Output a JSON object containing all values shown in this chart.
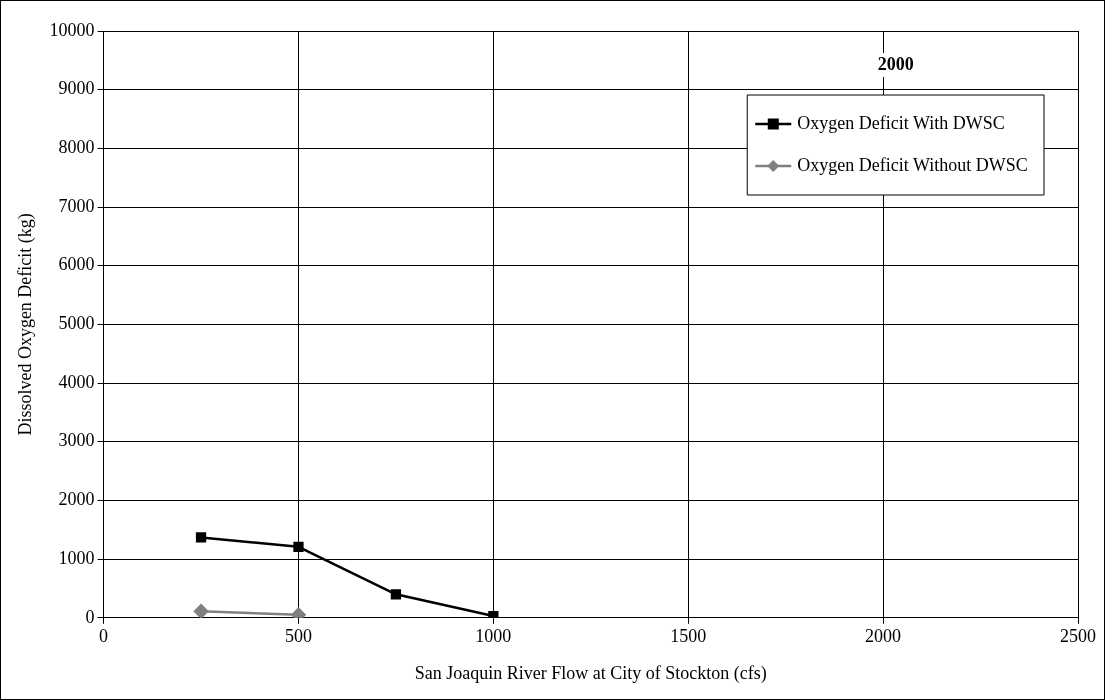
{
  "chart_data": {
    "type": "line",
    "xlabel": "San Joaquin River Flow at City of Stockton (cfs)",
    "ylabel": "Dissolved Oxygen Deficit (kg)",
    "legend_title": "2000",
    "xlim": [
      0,
      2500
    ],
    "xticks": [
      0,
      500,
      1000,
      1500,
      2000,
      2500
    ],
    "ylim": [
      0,
      10000
    ],
    "yticks": [
      0,
      1000,
      2000,
      3000,
      4000,
      5000,
      6000,
      7000,
      8000,
      9000,
      10000
    ],
    "grid": true,
    "legend": "top right",
    "series": [
      {
        "name": "Oxygen Deficit With DWSC",
        "color": "#000000",
        "marker": "square",
        "x": [
          250,
          500,
          750,
          1000
        ],
        "values": [
          1370,
          1210,
          400,
          30
        ]
      },
      {
        "name": "Oxygen Deficit Without DWSC",
        "color": "#808080",
        "marker": "diamond",
        "x": [
          250,
          500
        ],
        "values": [
          110,
          50
        ]
      }
    ]
  }
}
